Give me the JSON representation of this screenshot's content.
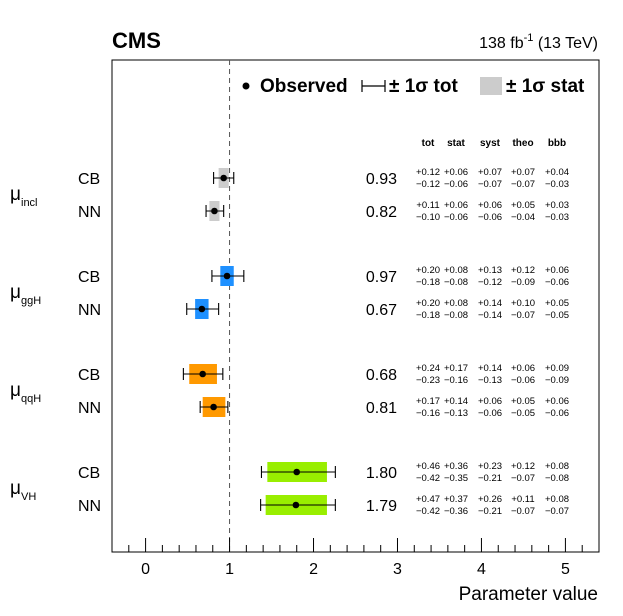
{
  "header": {
    "experiment": "CMS",
    "lumi": "138 fb",
    "lumi_exp": "-1",
    "energy": " (13 TeV)"
  },
  "legend": {
    "observed": "Observed",
    "tot": "± 1σ tot",
    "stat": "± 1σ stat"
  },
  "columns": [
    "tot",
    "stat",
    "syst",
    "theo",
    "bbb"
  ],
  "chart_data": {
    "type": "forest",
    "xlabel": "Parameter value",
    "xlim": [
      -0.4,
      5.4
    ],
    "xticks": [
      0,
      1,
      2,
      3,
      4,
      5
    ],
    "reference_line": 1,
    "groups": [
      {
        "param": "μ",
        "param_sub": "incl",
        "rows": [
          {
            "method": "CB",
            "value": 0.93,
            "value_label": "0.93",
            "color": "#cccccc",
            "up": [
              "+0.12",
              "+0.06",
              "+0.07",
              "+0.07",
              "+0.04"
            ],
            "dn": [
              "−0.12",
              "−0.06",
              "−0.07",
              "−0.07",
              "−0.03"
            ],
            "tot_up": 0.12,
            "tot_dn": 0.12,
            "stat_up": 0.06,
            "stat_dn": 0.06
          },
          {
            "method": "NN",
            "value": 0.82,
            "value_label": "0.82",
            "color": "#cccccc",
            "up": [
              "+0.11",
              "+0.06",
              "+0.06",
              "+0.05",
              "+0.03"
            ],
            "dn": [
              "−0.10",
              "−0.06",
              "−0.06",
              "−0.04",
              "−0.03"
            ],
            "tot_up": 0.11,
            "tot_dn": 0.1,
            "stat_up": 0.06,
            "stat_dn": 0.06
          }
        ]
      },
      {
        "param": "μ",
        "param_sub": "ggH",
        "rows": [
          {
            "method": "CB",
            "value": 0.97,
            "value_label": "0.97",
            "color": "#1e90ff",
            "up": [
              "+0.20",
              "+0.08",
              "+0.13",
              "+0.12",
              "+0.06"
            ],
            "dn": [
              "−0.18",
              "−0.08",
              "−0.12",
              "−0.09",
              "−0.06"
            ],
            "tot_up": 0.2,
            "tot_dn": 0.18,
            "stat_up": 0.08,
            "stat_dn": 0.08
          },
          {
            "method": "NN",
            "value": 0.67,
            "value_label": "0.67",
            "color": "#1e90ff",
            "up": [
              "+0.20",
              "+0.08",
              "+0.14",
              "+0.10",
              "+0.05"
            ],
            "dn": [
              "−0.18",
              "−0.08",
              "−0.14",
              "−0.07",
              "−0.05"
            ],
            "tot_up": 0.2,
            "tot_dn": 0.18,
            "stat_up": 0.08,
            "stat_dn": 0.08
          }
        ]
      },
      {
        "param": "μ",
        "param_sub": "qqH",
        "rows": [
          {
            "method": "CB",
            "value": 0.68,
            "value_label": "0.68",
            "color": "#ff9900",
            "up": [
              "+0.24",
              "+0.17",
              "+0.14",
              "+0.06",
              "+0.09"
            ],
            "dn": [
              "−0.23",
              "−0.16",
              "−0.13",
              "−0.06",
              "−0.09"
            ],
            "tot_up": 0.24,
            "tot_dn": 0.23,
            "stat_up": 0.17,
            "stat_dn": 0.16
          },
          {
            "method": "NN",
            "value": 0.81,
            "value_label": "0.81",
            "color": "#ff9900",
            "up": [
              "+0.17",
              "+0.14",
              "+0.06",
              "+0.05",
              "+0.06"
            ],
            "dn": [
              "−0.16",
              "−0.13",
              "−0.06",
              "−0.05",
              "−0.06"
            ],
            "tot_up": 0.17,
            "tot_dn": 0.16,
            "stat_up": 0.14,
            "stat_dn": 0.13
          }
        ]
      },
      {
        "param": "μ",
        "param_sub": "VH",
        "rows": [
          {
            "method": "CB",
            "value": 1.8,
            "value_label": "1.80",
            "color": "#99ee00",
            "up": [
              "+0.46",
              "+0.36",
              "+0.23",
              "+0.12",
              "+0.08"
            ],
            "dn": [
              "−0.42",
              "−0.35",
              "−0.21",
              "−0.07",
              "−0.08"
            ],
            "tot_up": 0.46,
            "tot_dn": 0.42,
            "stat_up": 0.36,
            "stat_dn": 0.35
          },
          {
            "method": "NN",
            "value": 1.79,
            "value_label": "1.79",
            "color": "#99ee00",
            "up": [
              "+0.47",
              "+0.37",
              "+0.26",
              "+0.11",
              "+0.08"
            ],
            "dn": [
              "−0.42",
              "−0.36",
              "−0.21",
              "−0.07",
              "−0.07"
            ],
            "tot_up": 0.47,
            "tot_dn": 0.42,
            "stat_up": 0.37,
            "stat_dn": 0.36
          }
        ]
      }
    ]
  }
}
